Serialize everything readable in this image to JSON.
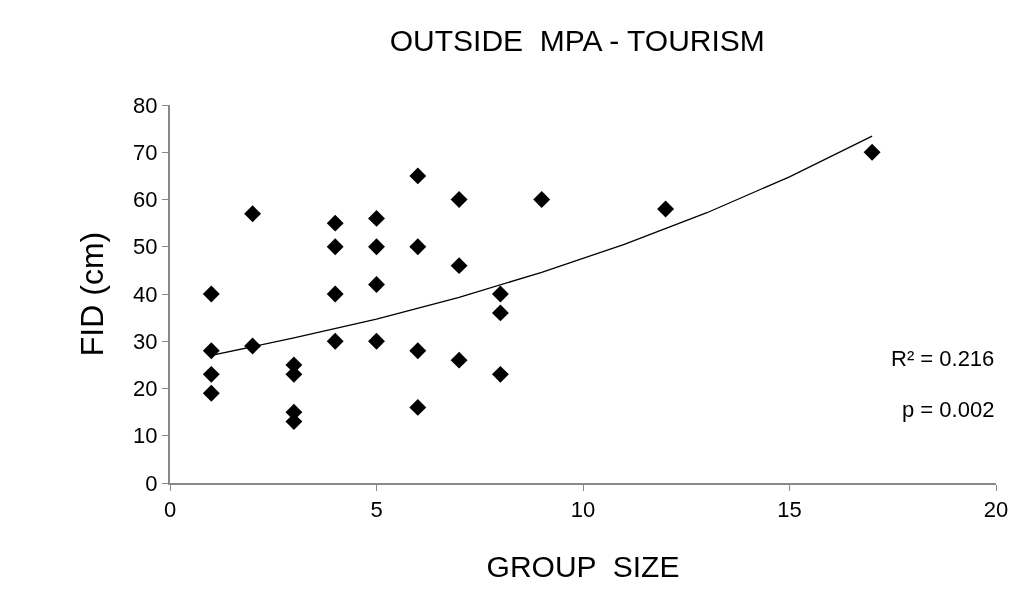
{
  "chart_data": {
    "type": "scatter",
    "title": "OUTSIDE  MPA - TOURISM",
    "xlabel": "GROUP  SIZE",
    "ylabel": "FID (cm)",
    "series": [
      {
        "color": "#000000",
        "marker": "diamond",
        "x": [
          1,
          1,
          1,
          1,
          2,
          2,
          3,
          3,
          3,
          3,
          4,
          4,
          4,
          4,
          5,
          5,
          5,
          5,
          6,
          6,
          6,
          6,
          7,
          7,
          7,
          8,
          8,
          8,
          9,
          12,
          17
        ],
        "values": [
          40,
          28,
          23,
          19,
          57,
          29,
          25,
          23,
          15,
          13,
          55,
          50,
          40,
          30,
          56,
          50,
          42,
          30,
          65,
          50,
          28,
          16,
          60,
          46,
          26,
          40,
          36,
          23,
          60,
          58,
          70
        ]
      },
      {
        "type": "line",
        "color": "#000000",
        "marker": "none",
        "x": [
          1,
          3,
          5,
          7,
          9,
          11,
          13,
          15,
          17
        ],
        "values": [
          27.0,
          30.7,
          34.7,
          39.3,
          44.6,
          50.5,
          57.2,
          64.8,
          73.4
        ]
      }
    ],
    "xlim": [
      0,
      20
    ],
    "xticks": [
      0,
      5,
      10,
      15,
      20
    ],
    "ylim": [
      0,
      80
    ],
    "yticks": [
      0,
      10,
      20,
      30,
      40,
      50,
      60,
      70,
      80
    ],
    "annotations": [
      "R² = 0.216",
      "p = 0.002"
    ]
  }
}
